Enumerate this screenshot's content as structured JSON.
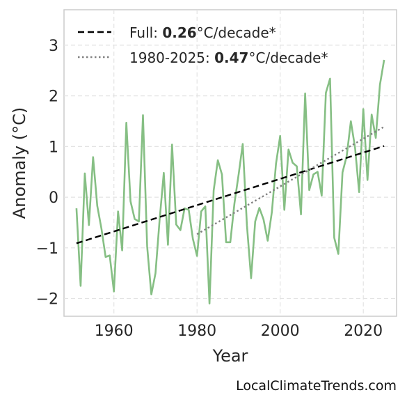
{
  "chart_data": {
    "type": "line",
    "title": "",
    "xlabel": "Year",
    "ylabel": "Anomaly (°C)",
    "xlim": [
      1948,
      2028
    ],
    "ylim": [
      -2.35,
      3.7
    ],
    "x_ticks": [
      1960,
      1980,
      2000,
      2020
    ],
    "x_tick_labels": [
      "1960",
      "1980",
      "2000",
      "2020"
    ],
    "y_ticks": [
      3,
      2,
      1,
      0,
      -1,
      -2
    ],
    "y_tick_labels": [
      "3",
      "2",
      "1",
      "0",
      "−1",
      "−2"
    ],
    "grid": true,
    "legend_position": "top-left",
    "series": [
      {
        "type": "line",
        "color": "#86bf84",
        "x": [
          1951,
          1952,
          1953,
          1954,
          1955,
          1956,
          1957,
          1958,
          1959,
          1960,
          1961,
          1962,
          1963,
          1964,
          1965,
          1966,
          1967,
          1968,
          1969,
          1970,
          1971,
          1972,
          1973,
          1974,
          1975,
          1976,
          1977,
          1978,
          1979,
          1980,
          1981,
          1982,
          1983,
          1984,
          1985,
          1986,
          1987,
          1988,
          1989,
          1990,
          1991,
          1992,
          1993,
          1994,
          1995,
          1996,
          1997,
          1998,
          1999,
          2000,
          2001,
          2002,
          2003,
          2004,
          2005,
          2006,
          2007,
          2008,
          2009,
          2010,
          2011,
          2012,
          2013,
          2014,
          2015,
          2016,
          2017,
          2018,
          2019,
          2020,
          2021,
          2022,
          2023,
          2024,
          2025
        ],
        "values": [
          -0.22,
          -1.75,
          0.47,
          -0.55,
          0.79,
          -0.17,
          -0.62,
          -1.18,
          -1.15,
          -1.86,
          -0.28,
          -1.05,
          1.47,
          -0.08,
          -0.43,
          -0.48,
          1.62,
          -0.97,
          -1.92,
          -1.5,
          -0.45,
          0.48,
          -0.94,
          1.04,
          -0.54,
          -0.65,
          -0.22,
          -0.25,
          -0.82,
          -1.16,
          -0.28,
          -0.18,
          -2.1,
          0.13,
          0.73,
          0.45,
          -0.89,
          -0.89,
          -0.12,
          0.45,
          1.05,
          -0.55,
          -1.6,
          -0.48,
          -0.21,
          -0.44,
          -0.86,
          -0.29,
          0.66,
          1.21,
          -0.25,
          0.94,
          0.68,
          0.61,
          -0.34,
          2.05,
          0.14,
          0.45,
          0.5,
          0.03,
          2.06,
          2.34,
          -0.8,
          -1.12,
          0.49,
          0.81,
          1.5,
          0.98,
          0.1,
          1.74,
          0.34,
          1.63,
          1.17,
          2.22,
          2.71
        ]
      },
      {
        "type": "trend",
        "name": "Full",
        "legend_value": "0.26",
        "legend_unit": "°C/decade*",
        "color": "#000000",
        "dash": "dashed",
        "x": [
          1951,
          2025
        ],
        "values": [
          -0.91,
          1.01
        ]
      },
      {
        "type": "trend",
        "name": "1980-2025",
        "legend_value": "0.47",
        "legend_unit": "°C/decade*",
        "color": "#808080",
        "dash": "dotted",
        "x": [
          1980,
          2025
        ],
        "values": [
          -0.73,
          1.39
        ]
      }
    ]
  },
  "credit": "LocalClimateTrends.com"
}
